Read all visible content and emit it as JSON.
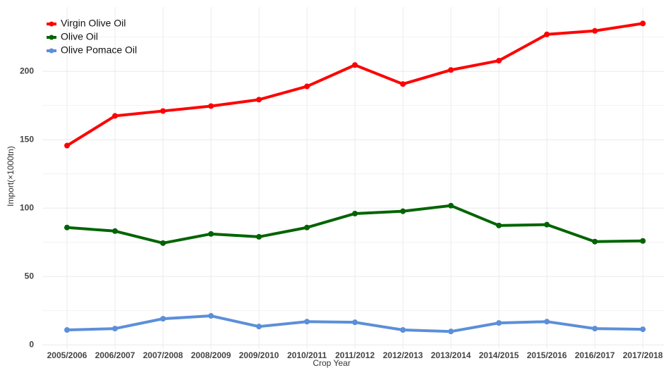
{
  "chart_data": {
    "type": "line",
    "x_label": "Crop Year",
    "y_label": "Import(×1000tn)",
    "categories": [
      "2005/2006",
      "2006/2007",
      "2007/2008",
      "2008/2009",
      "2009/2010",
      "2010/2011",
      "2011/2012",
      "2012/2013",
      "2013/2014",
      "2014/2015",
      "2015/2016",
      "2016/2017",
      "2017/2018"
    ],
    "series": [
      {
        "name": "Virgin Olive Oil",
        "color": "#ff0000",
        "values": [
          145.7,
          167.4,
          171,
          174.6,
          179.3,
          189,
          204.6,
          190.7,
          201,
          207.8,
          227,
          229.6,
          235
        ]
      },
      {
        "name": "Olive Oil",
        "color": "#006400",
        "values": [
          85.8,
          83.2,
          74.4,
          81.1,
          79,
          85.8,
          96,
          97.7,
          101.8,
          87.3,
          87.9,
          75.5,
          76
        ]
      },
      {
        "name": "Olive Pomace Oil",
        "color": "#5b8fd9",
        "values": [
          10.9,
          11.9,
          19.1,
          21.2,
          13.4,
          17,
          16.5,
          10.9,
          9.8,
          16,
          17,
          11.9,
          11.4
        ]
      }
    ],
    "ylim": [
      -3,
      247
    ],
    "yticks": [
      0,
      50,
      100,
      150,
      200
    ],
    "grid": true,
    "legend": "top-left"
  }
}
